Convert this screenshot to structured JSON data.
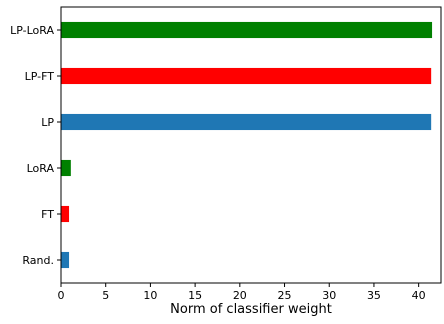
{
  "chart_data": {
    "type": "bar",
    "orientation": "horizontal",
    "categories": [
      "Rand.",
      "FT",
      "LoRA",
      "LP",
      "LP-FT",
      "LP-LoRA"
    ],
    "values": [
      0.9,
      0.9,
      1.1,
      41.4,
      41.4,
      41.5
    ],
    "colors": [
      "#1f77b4",
      "#ff0000",
      "#008000",
      "#1f77b4",
      "#ff0000",
      "#008000"
    ],
    "xlabel": "Norm of classifier weight",
    "ylabel": "",
    "title": "",
    "xlim": [
      0,
      42.5
    ],
    "xticks": [
      0,
      5,
      10,
      15,
      20,
      25,
      30,
      35,
      40
    ],
    "xtick_labels": [
      "0",
      "5",
      "10",
      "15",
      "20",
      "25",
      "30",
      "35",
      "40"
    ],
    "grid": false,
    "legend": "none"
  }
}
